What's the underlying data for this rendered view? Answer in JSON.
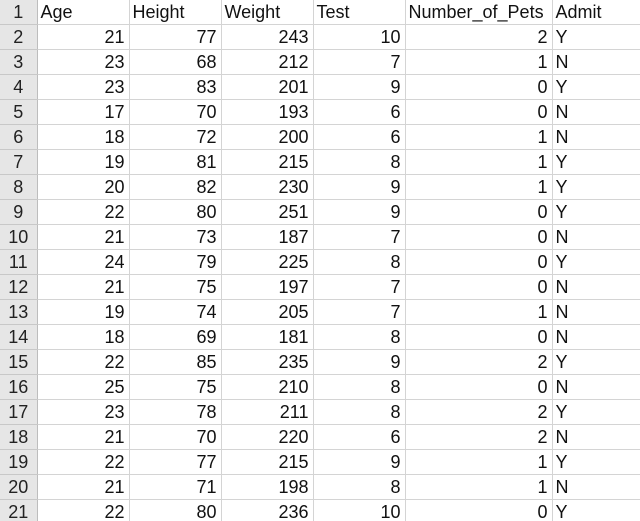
{
  "sheet": {
    "columns": [
      "Age",
      "Height",
      "Weight",
      "Test",
      "Number_of_Pets",
      "Admit"
    ],
    "header_row_number": "1",
    "rows": [
      {
        "n": "2",
        "cells": [
          "21",
          "77",
          "243",
          "10",
          "2",
          "Y"
        ]
      },
      {
        "n": "3",
        "cells": [
          "23",
          "68",
          "212",
          "7",
          "1",
          "N"
        ]
      },
      {
        "n": "4",
        "cells": [
          "23",
          "83",
          "201",
          "9",
          "0",
          "Y"
        ]
      },
      {
        "n": "5",
        "cells": [
          "17",
          "70",
          "193",
          "6",
          "0",
          "N"
        ]
      },
      {
        "n": "6",
        "cells": [
          "18",
          "72",
          "200",
          "6",
          "1",
          "N"
        ]
      },
      {
        "n": "7",
        "cells": [
          "19",
          "81",
          "215",
          "8",
          "1",
          "Y"
        ]
      },
      {
        "n": "8",
        "cells": [
          "20",
          "82",
          "230",
          "9",
          "1",
          "Y"
        ]
      },
      {
        "n": "9",
        "cells": [
          "22",
          "80",
          "251",
          "9",
          "0",
          "Y"
        ]
      },
      {
        "n": "10",
        "cells": [
          "21",
          "73",
          "187",
          "7",
          "0",
          "N"
        ]
      },
      {
        "n": "11",
        "cells": [
          "24",
          "79",
          "225",
          "8",
          "0",
          "Y"
        ]
      },
      {
        "n": "12",
        "cells": [
          "21",
          "75",
          "197",
          "7",
          "0",
          "N"
        ]
      },
      {
        "n": "13",
        "cells": [
          "19",
          "74",
          "205",
          "7",
          "1",
          "N"
        ]
      },
      {
        "n": "14",
        "cells": [
          "18",
          "69",
          "181",
          "8",
          "0",
          "N"
        ]
      },
      {
        "n": "15",
        "cells": [
          "22",
          "85",
          "235",
          "9",
          "2",
          "Y"
        ]
      },
      {
        "n": "16",
        "cells": [
          "25",
          "75",
          "210",
          "8",
          "0",
          "N"
        ]
      },
      {
        "n": "17",
        "cells": [
          "23",
          "78",
          "211",
          "8",
          "2",
          "Y"
        ]
      },
      {
        "n": "18",
        "cells": [
          "21",
          "70",
          "220",
          "6",
          "2",
          "N"
        ]
      },
      {
        "n": "19",
        "cells": [
          "22",
          "77",
          "215",
          "9",
          "1",
          "Y"
        ]
      },
      {
        "n": "20",
        "cells": [
          "21",
          "71",
          "198",
          "8",
          "1",
          "N"
        ]
      },
      {
        "n": "21",
        "cells": [
          "22",
          "80",
          "236",
          "10",
          "0",
          "Y"
        ]
      }
    ]
  }
}
